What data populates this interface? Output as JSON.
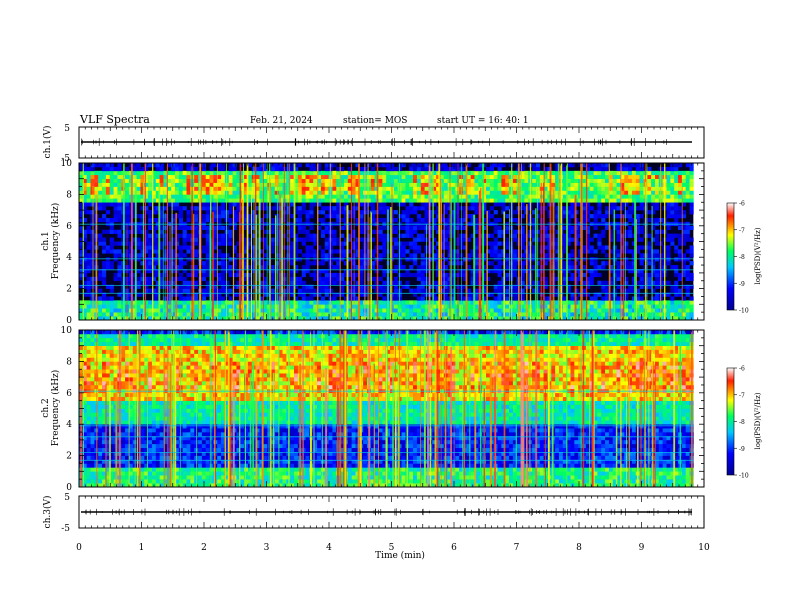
{
  "header": {
    "title": "VLF Spectra",
    "date": "Feb. 21, 2024",
    "station": "station= MOS",
    "start": "start  UT  =   16: 40: 1"
  },
  "chart_data": [
    {
      "type": "line",
      "name": "ch1-waveform",
      "ylabel": "ch.1(V)",
      "yticklabels": [
        "5",
        "-5"
      ],
      "ylim": [
        -5,
        5
      ],
      "baseline": 0.05
    },
    {
      "type": "heatmap",
      "name": "ch1-spectrogram",
      "ylabel": "ch.1\nFrequency (kHz)",
      "ylim": [
        0,
        10
      ],
      "yticks": [
        0,
        2,
        4,
        6,
        8,
        10
      ],
      "colorbar": {
        "label": "log(PSD)(V²/Hz)",
        "ticks": [
          -6,
          -7,
          -8,
          -9,
          -10
        ]
      }
    },
    {
      "type": "heatmap",
      "name": "ch2-spectrogram",
      "ylabel": "ch.2\nFrequency (kHz)",
      "ylim": [
        0,
        10
      ],
      "yticks": [
        0,
        2,
        4,
        6,
        8,
        10
      ],
      "colorbar": {
        "label": "log(PSD)(V²/Hz)",
        "ticks": [
          -6,
          -7,
          -8,
          -9,
          -10
        ]
      }
    },
    {
      "type": "line",
      "name": "ch3-waveform",
      "ylabel": "ch.3(V)",
      "yticklabels": [
        "5",
        "-5"
      ],
      "ylim": [
        -5,
        5
      ],
      "baseline": 0.05
    }
  ],
  "xaxis": {
    "label": "Time (min)",
    "xlim": [
      0,
      10
    ],
    "ticks": [
      0,
      1,
      2,
      3,
      4,
      5,
      6,
      7,
      8,
      9,
      10
    ],
    "data_end": 9.83
  },
  "colors": {
    "scale": [
      "#00008b",
      "#0000ff",
      "#00ccff",
      "#00ff66",
      "#ffff00",
      "#ff3300",
      "#ffffff"
    ]
  }
}
